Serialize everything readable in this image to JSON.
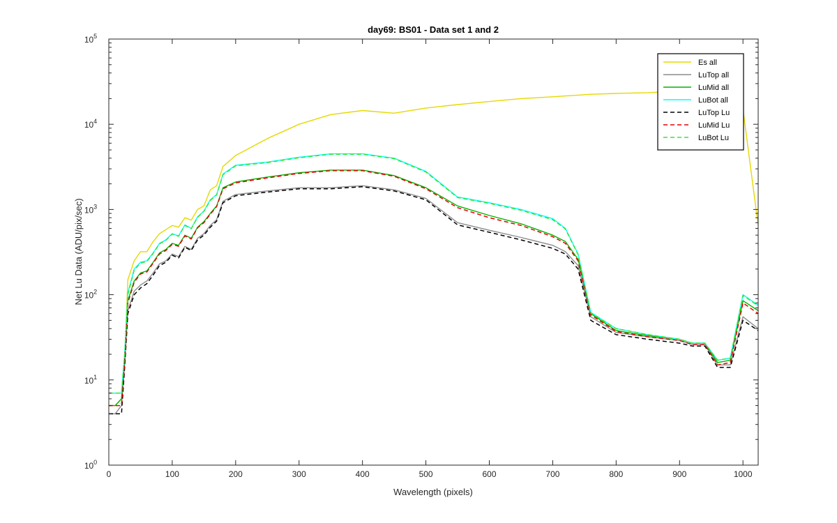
{
  "chart_data": {
    "type": "line",
    "title": "day69: BS01 - Data set 1 and 2",
    "xlabel": "Wavelength (pixels)",
    "ylabel": "Net Lu Data (ADU/pix/sec)",
    "xlim": [
      0,
      1024
    ],
    "ylim": [
      1,
      100000
    ],
    "yscale": "log",
    "grid": false,
    "legend_position": "top-right",
    "x_ticks": [
      0,
      100,
      200,
      300,
      400,
      500,
      600,
      700,
      800,
      900,
      1000
    ],
    "x_tick_labels": [
      "0",
      "100",
      "200",
      "300",
      "400",
      "500",
      "600",
      "700",
      "800",
      "900",
      "1000"
    ],
    "y_ticks": [
      1,
      10,
      100,
      1000,
      10000,
      100000
    ],
    "y_tick_labels": [
      {
        "base": "10",
        "exp": "0"
      },
      {
        "base": "10",
        "exp": "1"
      },
      {
        "base": "10",
        "exp": "2"
      },
      {
        "base": "10",
        "exp": "3"
      },
      {
        "base": "10",
        "exp": "4"
      },
      {
        "base": "10",
        "exp": "5"
      }
    ],
    "x": [
      0,
      10,
      20,
      25,
      30,
      40,
      50,
      60,
      70,
      80,
      90,
      100,
      110,
      120,
      130,
      140,
      150,
      160,
      170,
      180,
      200,
      250,
      300,
      350,
      400,
      450,
      500,
      550,
      600,
      650,
      700,
      720,
      740,
      760,
      800,
      850,
      900,
      920,
      940,
      960,
      980,
      1000,
      1024
    ],
    "series": [
      {
        "name": "Es  all",
        "color": "#e6d800",
        "dash": false,
        "values": [
          5,
          5,
          6,
          18,
          150,
          250,
          320,
          320,
          420,
          520,
          580,
          650,
          620,
          800,
          750,
          1000,
          1100,
          1700,
          1900,
          3200,
          4300,
          6800,
          10000,
          13000,
          14500,
          13500,
          15500,
          17000,
          18500,
          20000,
          21000,
          21500,
          22000,
          22500,
          23000,
          23500,
          24500,
          24500,
          23000,
          22000,
          21000,
          15000,
          650
        ]
      },
      {
        "name": "LuTop  all",
        "color": "#8c8c8c",
        "dash": false,
        "values": [
          4,
          4,
          5,
          15,
          65,
          110,
          130,
          145,
          180,
          230,
          250,
          300,
          280,
          370,
          340,
          460,
          520,
          650,
          760,
          1250,
          1500,
          1650,
          1800,
          1800,
          1900,
          1700,
          1350,
          700,
          570,
          470,
          380,
          320,
          220,
          55,
          36,
          32,
          29,
          26,
          26,
          15,
          15,
          55,
          40
        ]
      },
      {
        "name": "LuMid  all",
        "color": "#00b400",
        "dash": false,
        "values": [
          5,
          5,
          6,
          18,
          85,
          145,
          180,
          190,
          240,
          310,
          340,
          400,
          380,
          500,
          460,
          620,
          720,
          900,
          1100,
          1800,
          2100,
          2400,
          2700,
          2900,
          2900,
          2500,
          1800,
          1100,
          850,
          680,
          500,
          420,
          260,
          60,
          38,
          33,
          30,
          27,
          27,
          16,
          17,
          85,
          65
        ]
      },
      {
        "name": "LuBot  all",
        "color": "#00ffff",
        "dash": false,
        "values": [
          7,
          7,
          7,
          20,
          105,
          200,
          240,
          250,
          310,
          400,
          440,
          520,
          490,
          660,
          600,
          820,
          960,
          1300,
          1500,
          2600,
          3300,
          3600,
          4100,
          4500,
          4500,
          4000,
          2800,
          1400,
          1200,
          1000,
          780,
          600,
          300,
          62,
          40,
          34,
          30,
          27,
          27,
          17,
          18,
          100,
          75
        ]
      },
      {
        "name": "LuTop  Lu",
        "color": "#000000",
        "dash": true,
        "values": [
          4,
          4,
          4,
          14,
          60,
          100,
          120,
          135,
          170,
          220,
          240,
          290,
          270,
          360,
          330,
          440,
          500,
          620,
          730,
          1200,
          1450,
          1600,
          1750,
          1750,
          1850,
          1650,
          1300,
          660,
          540,
          440,
          350,
          300,
          200,
          50,
          34,
          30,
          27,
          25,
          25,
          14,
          14,
          50,
          38
        ]
      },
      {
        "name": "LuMid  Lu",
        "color": "#e60000",
        "dash": true,
        "values": [
          5,
          5,
          5,
          17,
          80,
          140,
          175,
          185,
          235,
          300,
          330,
          390,
          370,
          490,
          450,
          610,
          700,
          880,
          1080,
          1750,
          2050,
          2350,
          2650,
          2850,
          2850,
          2450,
          1750,
          1050,
          800,
          650,
          480,
          400,
          250,
          58,
          37,
          32,
          29,
          26,
          26,
          15,
          16,
          80,
          60
        ]
      },
      {
        "name": "LuBot  Lu",
        "color": "#33e633",
        "dash": true,
        "values": [
          7,
          7,
          7,
          20,
          100,
          195,
          235,
          245,
          305,
          395,
          435,
          515,
          485,
          650,
          595,
          810,
          950,
          1280,
          1480,
          2550,
          3250,
          3550,
          4050,
          4450,
          4450,
          3950,
          2750,
          1380,
          1180,
          980,
          760,
          590,
          295,
          61,
          40,
          34,
          30,
          27,
          27,
          17,
          18,
          98,
          74
        ]
      }
    ]
  }
}
